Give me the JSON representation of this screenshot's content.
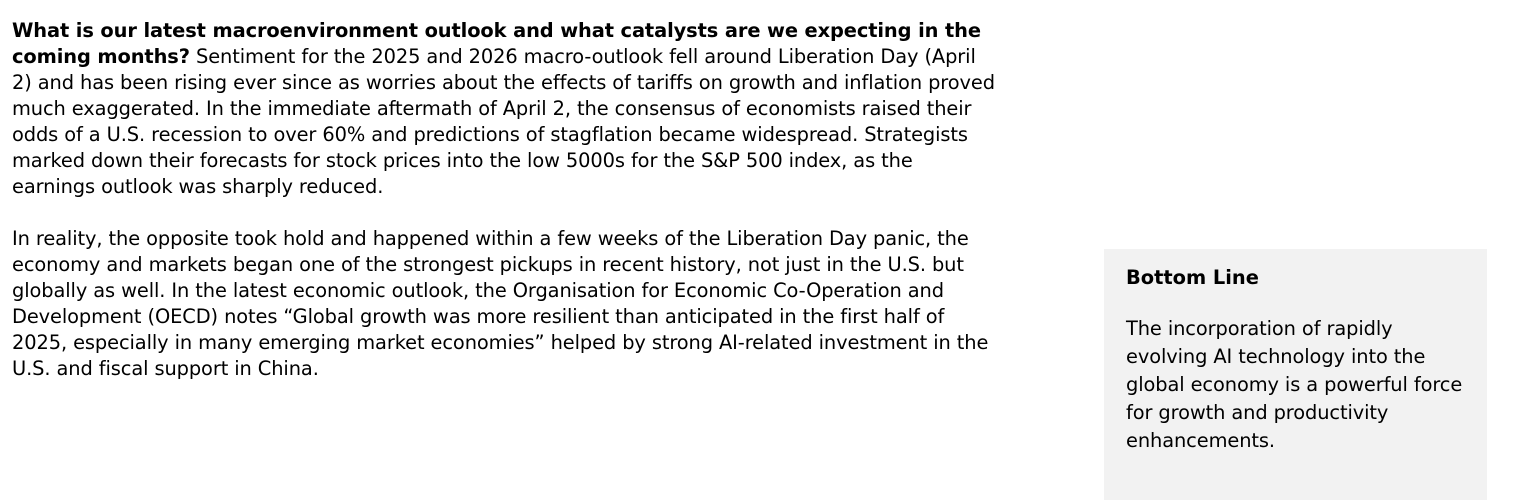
{
  "article": {
    "question": "What is our latest macroenvironment outlook and what catalysts are we expecting in the coming months?",
    "paragraph1": "Sentiment for the 2025 and 2026 macro-outlook fell around Liberation Day (April 2) and has been rising ever since as worries about the effects of tariffs on growth and inflation proved much exaggerated. In the immediate aftermath of April 2, the consensus of economists raised their odds of a U.S. recession to over 60% and predictions of stagflation became widespread. Strategists marked down their forecasts for stock prices into the low 5000s for the S&P 500 index, as the earnings outlook was sharply reduced.",
    "paragraph2": "In reality, the opposite took hold and happened within a few weeks of the Liberation Day panic, the economy and markets began one of the strongest pickups in recent history, not just in the U.S. but globally as well. In the latest economic outlook, the Organisation for Economic Co-Operation and Development (OECD) notes “Global growth was more resilient than anticipated in the first half of 2025, especially in many emerging market economies” helped by strong AI-related investment in the U.S. and fiscal support in China."
  },
  "sidebar": {
    "title": "Bottom Line",
    "body": "The incorporation of rapidly evolving AI technology into the global economy is a powerful force for growth and productivity enhancements."
  }
}
